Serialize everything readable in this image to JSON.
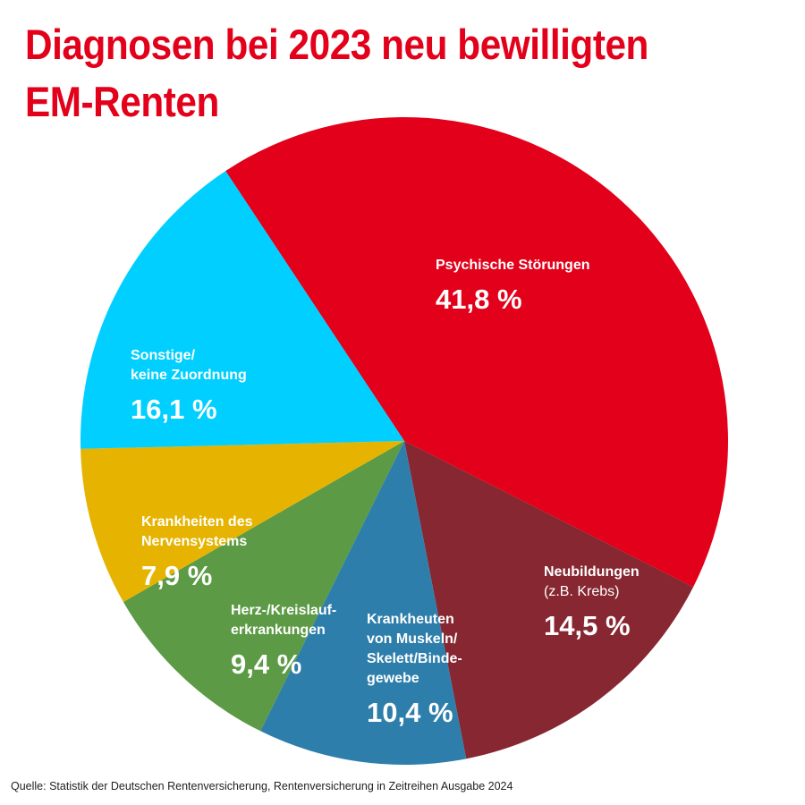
{
  "chart_data": {
    "type": "pie",
    "title_line1": "Diagnosen bei 2023 neu bewilligten",
    "title_line2": "EM-Renten",
    "slices": [
      {
        "label_lines": [
          "Psychische Störungen"
        ],
        "sub": "",
        "value": 41.8,
        "value_label": "41,8 %",
        "color": "#e2001a"
      },
      {
        "label_lines": [
          "Neubildungen"
        ],
        "sub": "(z.B. Krebs)",
        "value": 14.5,
        "value_label": "14,5 %",
        "color": "#862731"
      },
      {
        "label_lines": [
          "Krankheuten",
          "von Muskeln/",
          "Skelett/Binde-",
          "gewebe"
        ],
        "sub": "",
        "value": 10.4,
        "value_label": "10,4 %",
        "color": "#2e7eab"
      },
      {
        "label_lines": [
          "Herz-/Kreislauf-",
          "erkrankungen"
        ],
        "sub": "",
        "value": 9.4,
        "value_label": "9,4 %",
        "color": "#5c9a45"
      },
      {
        "label_lines": [
          "Krankheiten des",
          "Nervensystems"
        ],
        "sub": "",
        "value": 7.9,
        "value_label": "7,9 %",
        "color": "#e6b400"
      },
      {
        "label_lines": [
          "Sonstige/",
          "keine Zuordnung"
        ],
        "sub": "",
        "value": 16.1,
        "value_label": "16,1 %",
        "color": "#00cfff"
      }
    ]
  },
  "source": "Quelle: Statistik der Deutschen Rentenversicherung, Rentenversicherung in Zeitreihen Ausgabe 2024"
}
